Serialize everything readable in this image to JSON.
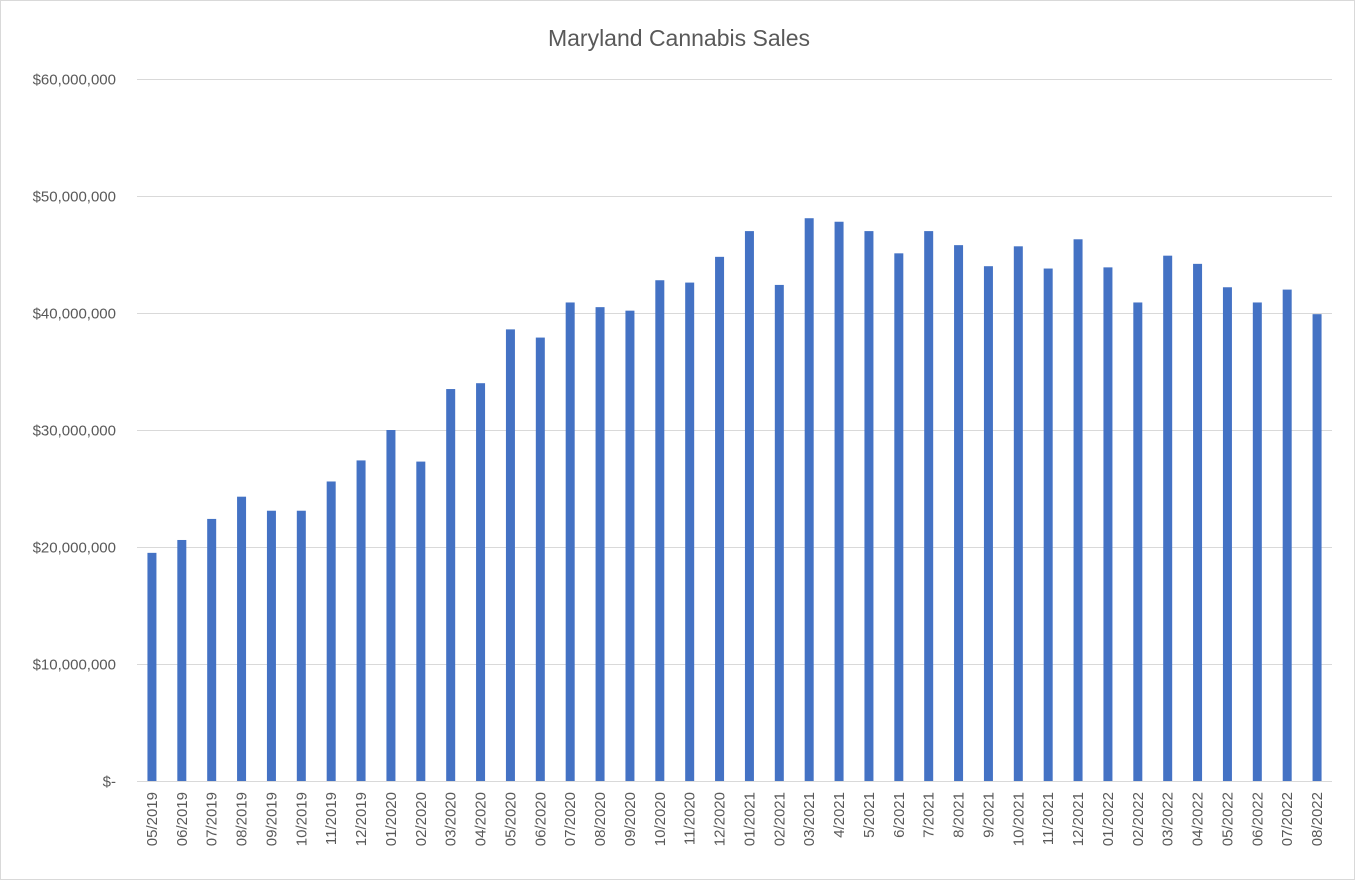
{
  "chart_data": {
    "type": "bar",
    "title": "Maryland Cannabis Sales",
    "xlabel": "",
    "ylabel": "",
    "ylim": [
      0,
      60000000
    ],
    "y_ticks": [
      0,
      10000000,
      20000000,
      30000000,
      40000000,
      50000000,
      60000000
    ],
    "y_tick_labels": [
      "$-",
      "$10,000,000",
      "$20,000,000",
      "$30,000,000",
      "$40,000,000",
      "$50,000,000",
      "$60,000,000"
    ],
    "grid": true,
    "legend": "none",
    "color": "#4472c4",
    "categories": [
      "05/2019",
      "06/2019",
      "07/2019",
      "08/2019",
      "09/2019",
      "10/2019",
      "11/2019",
      "12/2019",
      "01/2020",
      "02/2020",
      "03/2020",
      "04/2020",
      "05/2020",
      "06/2020",
      "07/2020",
      "08/2020",
      "09/2020",
      "10/2020",
      "11/2020",
      "12/2020",
      "01/2021",
      "02/2021",
      "03/2021",
      "4/2021",
      "5/2021",
      "6/2021",
      "7/2021",
      "8/2021",
      "9/2021",
      "10/2021",
      "11/2021",
      "12/2021",
      "01/2022",
      "02/2022",
      "03/2022",
      "04/2022",
      "05/2022",
      "06/2022",
      "07/2022",
      "08/2022"
    ],
    "values": [
      19500000,
      20600000,
      22400000,
      24300000,
      23100000,
      23100000,
      25600000,
      27400000,
      30000000,
      27300000,
      33500000,
      34000000,
      38600000,
      37900000,
      40900000,
      40500000,
      40200000,
      42800000,
      42600000,
      44800000,
      47000000,
      42400000,
      48100000,
      47800000,
      47000000,
      45100000,
      47000000,
      45800000,
      44000000,
      45700000,
      43800000,
      46300000,
      43900000,
      40900000,
      44900000,
      44200000,
      42200000,
      40900000,
      42000000,
      39900000
    ]
  }
}
